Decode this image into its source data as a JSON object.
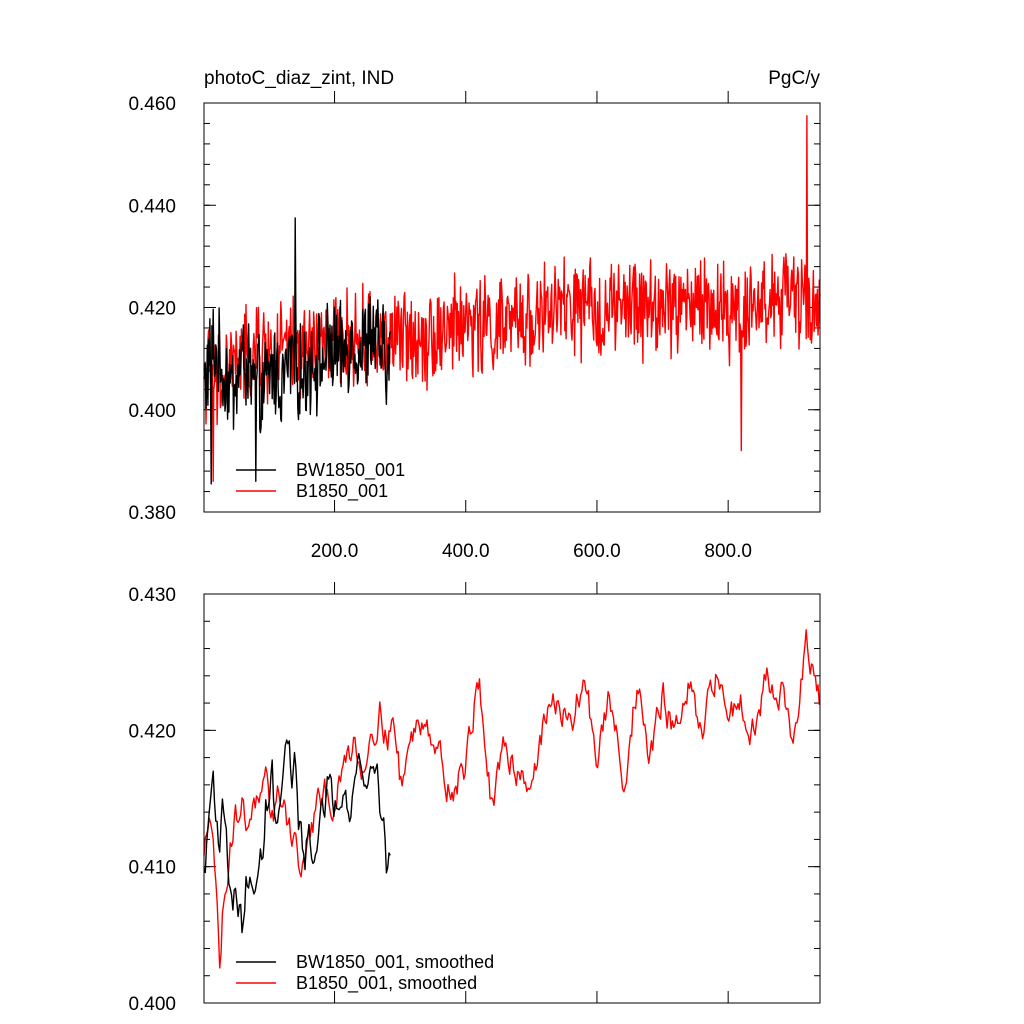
{
  "chart_data": [
    {
      "type": "line",
      "title_left": "photoC_diaz_zint, IND",
      "title_right": "PgC/y",
      "xlim": [
        1,
        940
      ],
      "ylim": [
        0.38,
        0.46
      ],
      "yticks": [
        "0.460",
        "0.440",
        "0.420",
        "0.400",
        "0.380"
      ],
      "xticks": [
        "200.0",
        "400.0",
        "600.0",
        "800.0"
      ],
      "legend_position": "bottom-left",
      "series": [
        {
          "name": "BW1850_001",
          "color": "#000000",
          "x": [
            1,
            15,
            30,
            45,
            60,
            75,
            90,
            105,
            120,
            135,
            150,
            165,
            180,
            195,
            210,
            225,
            240,
            255,
            270,
            285
          ],
          "y": [
            0.405,
            0.412,
            0.407,
            0.404,
            0.41,
            0.406,
            0.403,
            0.408,
            0.405,
            0.411,
            0.406,
            0.41,
            0.409,
            0.412,
            0.41,
            0.414,
            0.411,
            0.415,
            0.412,
            0.408
          ],
          "max": 0.4375,
          "min": 0.3855
        },
        {
          "name": "B1850_001",
          "color": "#ff0000",
          "x": [
            1,
            20,
            40,
            60,
            80,
            100,
            150,
            200,
            250,
            300,
            350,
            400,
            450,
            500,
            550,
            600,
            650,
            700,
            750,
            800,
            850,
            900,
            940
          ],
          "y": [
            0.408,
            0.404,
            0.409,
            0.41,
            0.411,
            0.411,
            0.412,
            0.413,
            0.414,
            0.414,
            0.415,
            0.417,
            0.416,
            0.418,
            0.42,
            0.419,
            0.42,
            0.42,
            0.421,
            0.419,
            0.421,
            0.422,
            0.42
          ],
          "max": 0.4575,
          "min": 0.386
        }
      ]
    },
    {
      "type": "line",
      "xlim": [
        1,
        940
      ],
      "ylim": [
        0.395,
        0.43
      ],
      "yticks": [
        "0.430",
        "0.420",
        "0.410",
        "0.400"
      ],
      "legend_position": "bottom-left",
      "series": [
        {
          "name": "BW1850_001, smoothed",
          "color": "#000000",
          "x": [
            1,
            5,
            10,
            15,
            20,
            25,
            30,
            35,
            40,
            45,
            50,
            55,
            60,
            65,
            70,
            75,
            80,
            85,
            90,
            95,
            100,
            105,
            110,
            115,
            120,
            125,
            130,
            135,
            140,
            145,
            150,
            155,
            160,
            165,
            170,
            175,
            180,
            185,
            190,
            195,
            200,
            205,
            210,
            215,
            220,
            225,
            230,
            235,
            240,
            245,
            250,
            255,
            260,
            265,
            270,
            275,
            280,
            285
          ],
          "y": [
            0.406,
            0.408,
            0.412,
            0.4145,
            0.411,
            0.409,
            0.412,
            0.41,
            0.405,
            0.4035,
            0.4045,
            0.403,
            0.401,
            0.405,
            0.404,
            0.406,
            0.4035,
            0.4065,
            0.408,
            0.412,
            0.4125,
            0.415,
            0.409,
            0.411,
            0.413,
            0.4165,
            0.4175,
            0.412,
            0.416,
            0.411,
            0.409,
            0.4075,
            0.41,
            0.407,
            0.409,
            0.41,
            0.412,
            0.4095,
            0.413,
            0.4145,
            0.412,
            0.413,
            0.4135,
            0.415,
            0.413,
            0.4125,
            0.414,
            0.415,
            0.416,
            0.414,
            0.413,
            0.415,
            0.4155,
            0.415,
            0.411,
            0.412,
            0.4065,
            0.408
          ],
          "min": 0.4008,
          "max": 0.4175
        },
        {
          "name": "B1850_001, smoothed",
          "color": "#ff0000",
          "x": [
            1,
            5,
            10,
            15,
            20,
            25,
            30,
            35,
            40,
            45,
            50,
            55,
            60,
            65,
            70,
            75,
            80,
            85,
            90,
            95,
            100,
            110,
            120,
            130,
            140,
            150,
            160,
            170,
            180,
            190,
            200,
            210,
            220,
            230,
            240,
            250,
            260,
            270,
            280,
            290,
            300,
            320,
            340,
            360,
            380,
            400,
            420,
            440,
            460,
            480,
            500,
            520,
            540,
            560,
            580,
            600,
            620,
            640,
            660,
            680,
            700,
            720,
            740,
            760,
            780,
            800,
            820,
            840,
            860,
            880,
            900,
            920,
            940
          ],
          "y": [
            0.407,
            0.409,
            0.413,
            0.41,
            0.404,
            0.3985,
            0.403,
            0.406,
            0.4085,
            0.41,
            0.411,
            0.4115,
            0.412,
            0.41,
            0.4115,
            0.412,
            0.4125,
            0.411,
            0.412,
            0.413,
            0.411,
            0.412,
            0.413,
            0.4105,
            0.409,
            0.4055,
            0.409,
            0.411,
            0.412,
            0.413,
            0.412,
            0.414,
            0.416,
            0.418,
            0.415,
            0.417,
            0.419,
            0.42,
            0.418,
            0.419,
            0.414,
            0.418,
            0.42,
            0.416,
            0.413,
            0.4155,
            0.423,
            0.411,
            0.417,
            0.415,
            0.414,
            0.419,
            0.421,
            0.418,
            0.423,
            0.416,
            0.421,
            0.414,
            0.422,
            0.416,
            0.421,
            0.418,
            0.422,
            0.417,
            0.423,
            0.42,
            0.421,
            0.4185,
            0.423,
            0.422,
            0.417,
            0.4255,
            0.42
          ],
          "min": 0.398,
          "max": 0.427
        }
      ]
    }
  ]
}
